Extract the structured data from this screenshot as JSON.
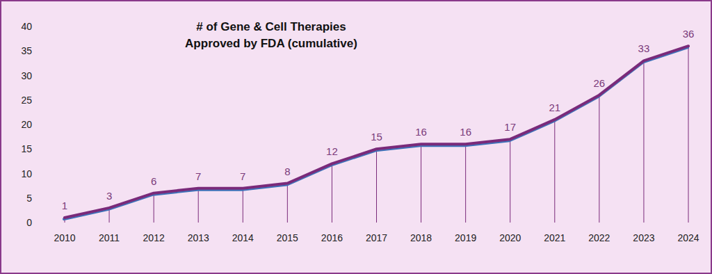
{
  "chart_data": {
    "type": "line",
    "title": "# of Gene & Cell Therapies",
    "subtitle": "Approved by FDA (cumulative)",
    "categories": [
      "2010",
      "2011",
      "2012",
      "2013",
      "2014",
      "2015",
      "2016",
      "2017",
      "2018",
      "2019",
      "2020",
      "2021",
      "2022",
      "2023",
      "2024"
    ],
    "values": [
      1,
      3,
      6,
      7,
      7,
      8,
      12,
      15,
      16,
      16,
      17,
      21,
      26,
      33,
      36
    ],
    "color": "#7a2a7a",
    "ylim": [
      0,
      40
    ],
    "yticks": [
      0,
      5,
      10,
      15,
      20,
      25,
      30,
      35,
      40
    ],
    "grid": false,
    "data_labels": true
  }
}
